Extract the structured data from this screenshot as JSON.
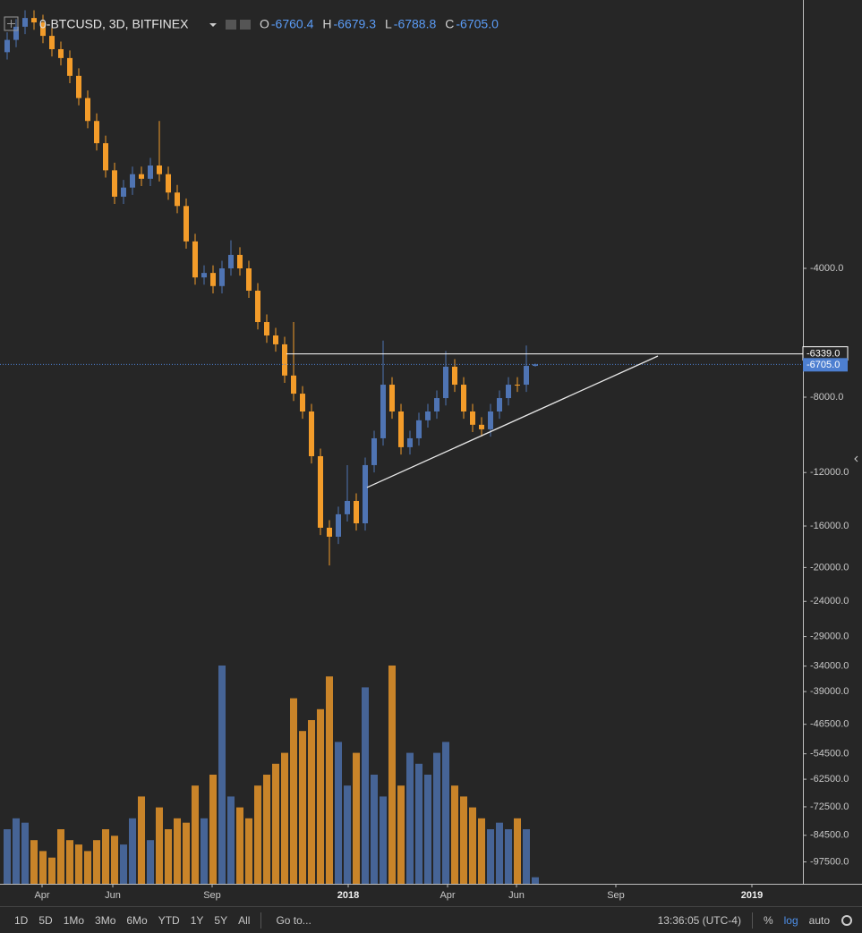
{
  "header": {
    "symbol": "0-BTCUSD, 3D, BITFINEX",
    "ohlc": [
      {
        "key": "O",
        "value": "-6760.4"
      },
      {
        "key": "H",
        "value": "-6679.3"
      },
      {
        "key": "L",
        "value": "-6788.8"
      },
      {
        "key": "C",
        "value": "-6705.0"
      }
    ]
  },
  "chart_data": {
    "type": "candlestick",
    "log": true,
    "grid": false,
    "up_color": "#4f74b3",
    "down_color": "#f39c2a",
    "categories": [
      null,
      null,
      null,
      null,
      null,
      null,
      null,
      null,
      null,
      null,
      null,
      null,
      null,
      null,
      null,
      null,
      null,
      null,
      null,
      null,
      null,
      null,
      null,
      null,
      null,
      null,
      null,
      null,
      null,
      null,
      null,
      null,
      null,
      null,
      null,
      null,
      null,
      null,
      null,
      null,
      null,
      null,
      null,
      null,
      null,
      null,
      null,
      null,
      null,
      null,
      null,
      null,
      null,
      null,
      null,
      null,
      null,
      null,
      null,
      null
    ],
    "open": [
      -1250,
      -1170,
      -1090,
      -1040,
      -1065,
      -1145,
      -1230,
      -1290,
      -1420,
      -1600,
      -1810,
      -2040,
      -2360,
      -2720,
      -2590,
      -2410,
      -2470,
      -2300,
      -2410,
      -2660,
      -2860,
      -3460,
      -4200,
      -4100,
      -4400,
      -4000,
      -3720,
      -4000,
      -4510,
      -5340,
      -5740,
      -6020,
      -7120,
      -7850,
      -8640,
      -10990,
      -16150,
      -16950,
      -15020,
      -13980,
      -15770,
      -11530,
      -9980,
      -7480,
      -8640,
      -10470,
      -9980,
      -9060,
      -8640,
      -8040,
      -6790,
      -7480,
      -8640,
      -9280,
      -9510,
      -8640,
      -8040,
      -7480,
      -7480,
      -6760.4
    ],
    "high": [
      -1123,
      -1046,
      -998,
      -998,
      -1022,
      -1099,
      -1181,
      -1238,
      -1363,
      -1536,
      -1738,
      -1958,
      -2266,
      -2486,
      -2314,
      -2314,
      -2208,
      -1810,
      -2314,
      -2554,
      -2746,
      -3322,
      -3936,
      -3936,
      -3840,
      -3440,
      -3571,
      -3840,
      -4330,
      -5126,
      -5510,
      -5779,
      -5340,
      -7536,
      -8294,
      -10550,
      -15504,
      -14419,
      -11530,
      -13421,
      -11069,
      -9581,
      -5900,
      -7181,
      -8294,
      -9581,
      -8698,
      -8294,
      -7718,
      -6240,
      -6518,
      -7181,
      -8294,
      -8909,
      -8294,
      -7718,
      -7181,
      -7181,
      -6060,
      -6679.3
    ],
    "low": [
      -1300,
      -1217,
      -1134,
      -1108,
      -1191,
      -1279,
      -1342,
      -1477,
      -1664,
      -1882,
      -2122,
      -2454,
      -2829,
      -2829,
      -2694,
      -2569,
      -2569,
      -2506,
      -2766,
      -2974,
      -3598,
      -4368,
      -4368,
      -4576,
      -4576,
      -4160,
      -4160,
      -4690,
      -5554,
      -5970,
      -6261,
      -7405,
      -8164,
      -8986,
      -11430,
      -16796,
      -19790,
      -17628,
      -15621,
      -16401,
      -16401,
      -11991,
      -10379,
      -8986,
      -10889,
      -10889,
      -10379,
      -9422,
      -8986,
      -8362,
      -7779,
      -8986,
      -9651,
      -9890,
      -9890,
      -8986,
      -8362,
      -7779,
      -7779,
      -6788.8
    ],
    "close": [
      -1170,
      -1090,
      -1040,
      -1065,
      -1145,
      -1230,
      -1290,
      -1420,
      -1600,
      -1810,
      -2040,
      -2360,
      -2720,
      -2590,
      -2410,
      -2470,
      -2300,
      -2410,
      -2660,
      -2860,
      -3460,
      -4200,
      -4100,
      -4400,
      -4000,
      -3720,
      -4000,
      -4510,
      -5340,
      -5740,
      -6020,
      -7120,
      -7850,
      -8640,
      -10990,
      -16150,
      -16950,
      -15020,
      -13980,
      -15770,
      -11530,
      -9980,
      -7480,
      -8640,
      -10470,
      -9980,
      -9060,
      -8640,
      -8040,
      -6790,
      -7480,
      -8640,
      -9280,
      -9510,
      -8640,
      -8040,
      -7480,
      -7480,
      -6760.4,
      -6705.0
    ],
    "volume": [
      25,
      30,
      28,
      20,
      15,
      12,
      25,
      20,
      18,
      15,
      20,
      25,
      22,
      18,
      30,
      40,
      20,
      35,
      25,
      30,
      28,
      45,
      30,
      50,
      100,
      40,
      35,
      30,
      45,
      50,
      55,
      60,
      85,
      70,
      75,
      80,
      95,
      65,
      45,
      60,
      90,
      50,
      40,
      100,
      45,
      60,
      55,
      50,
      60,
      65,
      45,
      40,
      35,
      30,
      25,
      28,
      25,
      30,
      25,
      3
    ],
    "y2lim": [
      0,
      100
    ],
    "xlim": [
      -0.8,
      88.9
    ],
    "xticks": [
      {
        "value": 3.9,
        "label": "Apr"
      },
      {
        "value": 11.8,
        "label": "Jun"
      },
      {
        "value": 22.9,
        "label": "Sep"
      },
      {
        "value": 38.1,
        "label": "2018"
      },
      {
        "value": 49.2,
        "label": "Apr"
      },
      {
        "value": 56.9,
        "label": "Jun"
      },
      {
        "value": 68,
        "label": "Sep"
      },
      {
        "value": 83.2,
        "label": "2019"
      }
    ],
    "ylim": [
      -109700,
      -967
    ],
    "yticks": [
      {
        "value": -4000,
        "label": "-4000.0"
      },
      {
        "value": -8000,
        "label": "-8000.0"
      },
      {
        "value": -12000,
        "label": "-12000.0"
      },
      {
        "value": -16000,
        "label": "-16000.0"
      },
      {
        "value": -20000,
        "label": "-20000.0"
      },
      {
        "value": -24000,
        "label": "-24000.0"
      },
      {
        "value": -29000,
        "label": "-29000.0"
      },
      {
        "value": -34000,
        "label": "-34000.0"
      },
      {
        "value": -39000,
        "label": "-39000.0"
      },
      {
        "value": -46500,
        "label": "-46500.0"
      },
      {
        "value": -54500,
        "label": "-54500.0"
      },
      {
        "value": -62500,
        "label": "-62500.0"
      },
      {
        "value": -72500,
        "label": "-72500.0"
      },
      {
        "value": -84500,
        "label": "-84500.0"
      },
      {
        "value": -97500,
        "label": "-97500.0"
      }
    ],
    "hline": {
      "x": 31.2,
      "value": -6339,
      "label": "-6339.0"
    },
    "last_price": {
      "value": -6705.0,
      "label": "-6705.0"
    },
    "trendline": {
      "x": [
        40.2,
        72.7
      ],
      "values": [
        -13004,
        -6411
      ]
    }
  },
  "toolbar": {
    "ranges": [
      "1D",
      "5D",
      "1Mo",
      "3Mo",
      "6Mo",
      "YTD",
      "1Y",
      "5Y",
      "All"
    ],
    "goto": "Go to...",
    "time": "13:36:05 (UTC-4)",
    "options": [
      "%",
      "log",
      "auto"
    ]
  }
}
